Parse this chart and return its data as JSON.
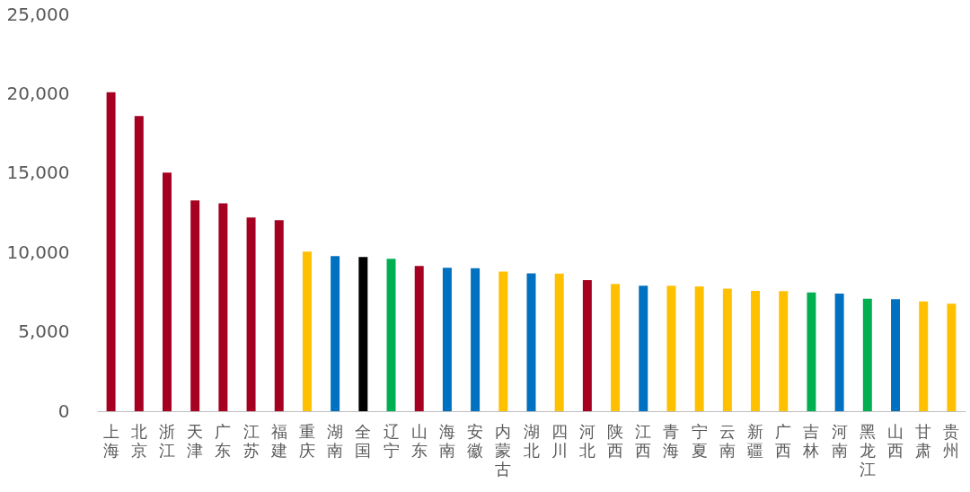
{
  "chart_data": {
    "type": "bar",
    "categories": [
      "上海",
      "北京",
      "浙江",
      "天津",
      "广东",
      "江苏",
      "福建",
      "重庆",
      "湖南",
      "全国",
      "辽宁",
      "山东",
      "海南",
      "安徽",
      "内蒙古",
      "湖北",
      "四川",
      "河北",
      "陕西",
      "江西",
      "青海",
      "宁夏",
      "云南",
      "新疆",
      "广西",
      "吉林",
      "河南",
      "黑龙江",
      "山西",
      "甘肃",
      "贵州"
    ],
    "values": [
      20100,
      18600,
      15030,
      13280,
      13100,
      12200,
      12030,
      10060,
      9770,
      9720,
      9600,
      9150,
      9040,
      9010,
      8790,
      8680,
      8670,
      8260,
      8020,
      7900,
      7900,
      7860,
      7720,
      7580,
      7560,
      7480,
      7410,
      7090,
      7050,
      6910,
      6770
    ],
    "colors": [
      "#a50021",
      "#a50021",
      "#a50021",
      "#a50021",
      "#a50021",
      "#a50021",
      "#a50021",
      "#ffc000",
      "#0070c0",
      "#000000",
      "#00b050",
      "#a50021",
      "#0070c0",
      "#0070c0",
      "#ffc000",
      "#0070c0",
      "#ffc000",
      "#a50021",
      "#ffc000",
      "#0070c0",
      "#ffc000",
      "#ffc000",
      "#ffc000",
      "#ffc000",
      "#ffc000",
      "#00b050",
      "#0070c0",
      "#00b050",
      "#0070c0",
      "#ffc000",
      "#ffc000"
    ],
    "ylim": [
      0,
      25000
    ],
    "yticks": [
      0,
      {
        "value": 5000,
        "label": "5,000"
      },
      {
        "value": 10000,
        "label": "10,000"
      },
      {
        "value": 15000,
        "label": "15,000"
      },
      {
        "value": 20000,
        "label": "20,000"
      },
      {
        "value": 25000,
        "label": "25,000"
      }
    ],
    "grid": false
  }
}
